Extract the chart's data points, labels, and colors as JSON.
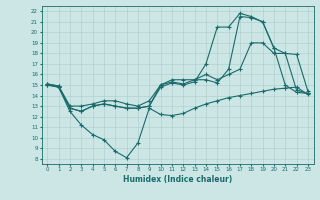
{
  "bg_color": "#cce5e5",
  "grid_color": "#aacccc",
  "line_color": "#1a6b6b",
  "xlabel": "Humidex (Indice chaleur)",
  "xlim": [
    -0.5,
    23.5
  ],
  "ylim": [
    7.5,
    22.5
  ],
  "xticks": [
    0,
    1,
    2,
    3,
    4,
    5,
    6,
    7,
    8,
    9,
    10,
    11,
    12,
    13,
    14,
    15,
    16,
    17,
    18,
    19,
    20,
    21,
    22,
    23
  ],
  "yticks": [
    8,
    9,
    10,
    11,
    12,
    13,
    14,
    15,
    16,
    17,
    18,
    19,
    20,
    21,
    22
  ],
  "line1_x": [
    0,
    1,
    2,
    3,
    4,
    5,
    6,
    7,
    8,
    9,
    10,
    11,
    12,
    13,
    14,
    15,
    16,
    17,
    18,
    19,
    20,
    21,
    22,
    23
  ],
  "line1_y": [
    15.0,
    14.8,
    12.5,
    11.2,
    10.3,
    9.8,
    8.7,
    8.1,
    9.5,
    12.8,
    12.2,
    12.1,
    12.3,
    12.8,
    13.2,
    13.5,
    13.8,
    14.0,
    14.2,
    14.4,
    14.6,
    14.7,
    14.8,
    14.1
  ],
  "line2_x": [
    0,
    1,
    2,
    3,
    4,
    5,
    6,
    7,
    8,
    9,
    10,
    11,
    12,
    13,
    14,
    15,
    16,
    17,
    18,
    19,
    20,
    21,
    22,
    23
  ],
  "line2_y": [
    15.1,
    14.9,
    12.8,
    12.5,
    13.0,
    13.2,
    13.0,
    12.8,
    12.8,
    13.0,
    14.8,
    15.2,
    15.0,
    15.3,
    17.0,
    20.5,
    20.5,
    21.8,
    21.5,
    21.0,
    18.5,
    15.0,
    14.3,
    14.2
  ],
  "line3_x": [
    0,
    1,
    2,
    3,
    4,
    5,
    6,
    7,
    8,
    9,
    10,
    11,
    12,
    13,
    14,
    15,
    16,
    17,
    18,
    19,
    20,
    21,
    22,
    23
  ],
  "line3_y": [
    15.0,
    14.8,
    12.8,
    12.5,
    13.0,
    13.2,
    13.0,
    12.8,
    12.8,
    13.0,
    15.0,
    15.3,
    15.1,
    15.5,
    15.5,
    15.2,
    16.5,
    21.5,
    21.4,
    21.0,
    18.5,
    18.0,
    14.5,
    14.2
  ],
  "line4_x": [
    0,
    1,
    2,
    3,
    4,
    5,
    6,
    7,
    8,
    9,
    10,
    11,
    12,
    13,
    14,
    15,
    16,
    17,
    18,
    19,
    20,
    21,
    22,
    23
  ],
  "line4_y": [
    15.1,
    14.9,
    13.0,
    13.0,
    13.2,
    13.5,
    13.5,
    13.2,
    13.0,
    13.5,
    15.0,
    15.5,
    15.5,
    15.5,
    16.0,
    15.5,
    16.0,
    16.5,
    19.0,
    19.0,
    18.0,
    18.0,
    17.9,
    14.4
  ]
}
